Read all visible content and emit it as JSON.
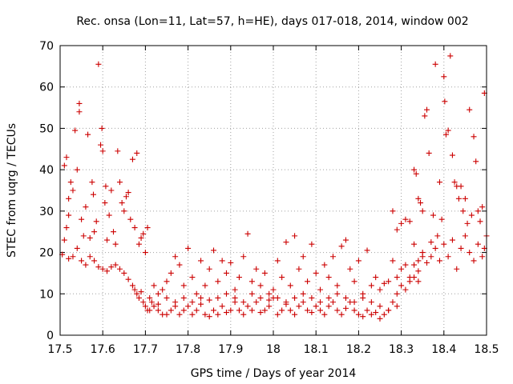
{
  "chart_data": {
    "type": "scatter",
    "title": "Rec. onsa (Lon=11, Lat=57, h=HE), days 017-018, 2014, window 002",
    "xlabel": "GPS time / Days of year 2014",
    "ylabel": "STEC from uqrg / TECUs",
    "xlim": [
      17.5,
      18.5
    ],
    "ylim": [
      0,
      70
    ],
    "x_ticks": [
      17.5,
      17.6,
      17.7,
      17.8,
      17.9,
      18.0,
      18.1,
      18.2,
      18.3,
      18.4,
      18.5
    ],
    "x_tick_labels": [
      "17.5",
      "17.6",
      "17.7",
      "17.8",
      "17.9",
      "18",
      "18.1",
      "18.2",
      "18.3",
      "18.4",
      "18.5"
    ],
    "y_ticks": [
      0,
      10,
      20,
      30,
      40,
      50,
      60,
      70
    ],
    "y_tick_labels": [
      "0",
      "10",
      "20",
      "30",
      "40",
      "50",
      "60",
      "70"
    ],
    "grid": true,
    "marker": "plus",
    "marker_color": "#cc0000",
    "series": [
      {
        "name": "STEC",
        "points": [
          [
            17.505,
            19.5
          ],
          [
            17.51,
            23
          ],
          [
            17.515,
            26
          ],
          [
            17.52,
            29
          ],
          [
            17.51,
            41
          ],
          [
            17.515,
            43
          ],
          [
            17.52,
            33
          ],
          [
            17.525,
            37
          ],
          [
            17.53,
            35
          ],
          [
            17.535,
            49.5
          ],
          [
            17.54,
            40
          ],
          [
            17.545,
            56
          ],
          [
            17.545,
            54
          ],
          [
            17.55,
            28
          ],
          [
            17.555,
            24
          ],
          [
            17.56,
            31
          ],
          [
            17.565,
            48.5
          ],
          [
            17.57,
            23.5
          ],
          [
            17.575,
            37
          ],
          [
            17.578,
            34
          ],
          [
            17.58,
            25
          ],
          [
            17.585,
            27.5
          ],
          [
            17.59,
            65.5
          ],
          [
            17.595,
            46
          ],
          [
            17.598,
            50
          ],
          [
            17.6,
            44.5
          ],
          [
            17.605,
            32
          ],
          [
            17.607,
            36
          ],
          [
            17.61,
            23
          ],
          [
            17.615,
            29
          ],
          [
            17.62,
            35
          ],
          [
            17.625,
            25
          ],
          [
            17.63,
            22
          ],
          [
            17.635,
            44.5
          ],
          [
            17.64,
            37
          ],
          [
            17.645,
            32
          ],
          [
            17.65,
            30
          ],
          [
            17.655,
            33.5
          ],
          [
            17.66,
            34.5
          ],
          [
            17.665,
            28
          ],
          [
            17.67,
            42.5
          ],
          [
            17.675,
            26
          ],
          [
            17.68,
            44
          ],
          [
            17.685,
            22
          ],
          [
            17.69,
            23.5
          ],
          [
            17.695,
            24.5
          ],
          [
            17.7,
            20
          ],
          [
            17.705,
            26
          ],
          [
            17.52,
            18.5
          ],
          [
            17.53,
            19
          ],
          [
            17.54,
            21
          ],
          [
            17.55,
            18
          ],
          [
            17.56,
            17
          ],
          [
            17.57,
            19
          ],
          [
            17.58,
            18
          ],
          [
            17.59,
            16.5
          ],
          [
            17.6,
            16
          ],
          [
            17.61,
            15.5
          ],
          [
            17.62,
            16.5
          ],
          [
            17.63,
            17
          ],
          [
            17.64,
            16
          ],
          [
            17.65,
            15
          ],
          [
            17.66,
            13.5
          ],
          [
            17.67,
            12
          ],
          [
            17.675,
            11
          ],
          [
            17.68,
            10
          ],
          [
            17.685,
            9
          ],
          [
            17.69,
            10.5
          ],
          [
            17.695,
            8
          ],
          [
            17.7,
            7
          ],
          [
            17.705,
            6
          ],
          [
            17.71,
            9
          ],
          [
            17.715,
            8
          ],
          [
            17.72,
            7
          ],
          [
            17.73,
            6
          ],
          [
            17.74,
            5
          ],
          [
            17.75,
            5
          ],
          [
            17.76,
            6
          ],
          [
            17.77,
            7
          ],
          [
            17.78,
            5
          ],
          [
            17.79,
            6
          ],
          [
            17.8,
            7
          ],
          [
            17.81,
            5
          ],
          [
            17.82,
            6
          ],
          [
            17.83,
            7.5
          ],
          [
            17.84,
            5
          ],
          [
            17.85,
            4.5
          ],
          [
            17.86,
            6
          ],
          [
            17.87,
            5
          ],
          [
            17.88,
            7
          ],
          [
            17.89,
            5.5
          ],
          [
            17.9,
            6
          ],
          [
            17.91,
            8
          ],
          [
            17.92,
            6
          ],
          [
            17.93,
            5
          ],
          [
            17.94,
            7
          ],
          [
            17.95,
            6
          ],
          [
            17.96,
            8
          ],
          [
            17.97,
            5.5
          ],
          [
            17.98,
            6
          ],
          [
            17.99,
            7
          ],
          [
            18.0,
            9
          ],
          [
            18.01,
            5
          ],
          [
            18.02,
            6
          ],
          [
            18.03,
            7.5
          ],
          [
            18.04,
            6
          ],
          [
            18.05,
            5
          ],
          [
            18.06,
            7
          ],
          [
            18.07,
            8
          ],
          [
            18.08,
            6
          ],
          [
            18.09,
            5.5
          ],
          [
            18.1,
            7
          ],
          [
            18.11,
            6
          ],
          [
            18.12,
            5
          ],
          [
            18.13,
            7
          ],
          [
            18.14,
            8
          ],
          [
            18.15,
            6
          ],
          [
            18.16,
            5
          ],
          [
            18.17,
            6.5
          ],
          [
            18.18,
            8
          ],
          [
            18.19,
            6
          ],
          [
            18.2,
            5
          ],
          [
            18.21,
            4.5
          ],
          [
            18.22,
            6
          ],
          [
            18.23,
            5
          ],
          [
            18.24,
            5.5
          ],
          [
            18.25,
            4
          ],
          [
            18.26,
            5
          ],
          [
            18.27,
            6
          ],
          [
            18.28,
            8
          ],
          [
            18.29,
            10
          ],
          [
            18.3,
            12
          ],
          [
            18.31,
            11
          ],
          [
            18.32,
            13
          ],
          [
            18.33,
            14
          ],
          [
            18.34,
            15.5
          ],
          [
            17.72,
            12
          ],
          [
            17.73,
            10
          ],
          [
            17.74,
            11
          ],
          [
            17.75,
            13
          ],
          [
            17.76,
            15
          ],
          [
            17.77,
            19
          ],
          [
            17.78,
            17
          ],
          [
            17.79,
            12
          ],
          [
            17.8,
            21
          ],
          [
            17.81,
            14
          ],
          [
            17.82,
            10
          ],
          [
            17.83,
            18
          ],
          [
            17.84,
            12
          ],
          [
            17.85,
            16
          ],
          [
            17.86,
            20.5
          ],
          [
            17.87,
            13
          ],
          [
            17.88,
            18
          ],
          [
            17.89,
            15
          ],
          [
            17.9,
            17.5
          ],
          [
            17.91,
            11
          ],
          [
            17.92,
            14
          ],
          [
            17.93,
            19
          ],
          [
            17.94,
            24.5
          ],
          [
            17.95,
            13
          ],
          [
            17.96,
            16
          ],
          [
            17.97,
            12
          ],
          [
            17.98,
            15
          ],
          [
            17.99,
            10
          ],
          [
            18.0,
            11
          ],
          [
            18.01,
            18
          ],
          [
            18.02,
            14
          ],
          [
            18.03,
            22.5
          ],
          [
            18.04,
            12
          ],
          [
            18.05,
            24
          ],
          [
            18.06,
            16
          ],
          [
            18.07,
            19
          ],
          [
            18.08,
            13
          ],
          [
            18.09,
            22
          ],
          [
            18.1,
            15
          ],
          [
            18.11,
            11
          ],
          [
            18.12,
            17
          ],
          [
            18.13,
            14
          ],
          [
            18.14,
            19
          ],
          [
            18.15,
            12
          ],
          [
            18.16,
            21.5
          ],
          [
            18.17,
            23
          ],
          [
            18.18,
            16
          ],
          [
            18.19,
            13
          ],
          [
            18.2,
            18
          ],
          [
            18.21,
            10
          ],
          [
            18.22,
            20.5
          ],
          [
            18.23,
            12
          ],
          [
            18.24,
            14
          ],
          [
            18.25,
            11
          ],
          [
            18.26,
            12.5
          ],
          [
            18.27,
            13
          ],
          [
            18.28,
            18
          ],
          [
            18.29,
            14
          ],
          [
            18.3,
            16
          ],
          [
            18.31,
            17
          ],
          [
            18.32,
            14
          ],
          [
            18.33,
            22
          ],
          [
            18.34,
            13
          ],
          [
            18.35,
            19
          ],
          [
            17.71,
            6
          ],
          [
            17.73,
            7.5
          ],
          [
            17.75,
            9
          ],
          [
            17.77,
            8
          ],
          [
            17.79,
            9
          ],
          [
            17.81,
            8
          ],
          [
            17.83,
            9
          ],
          [
            17.85,
            8.5
          ],
          [
            17.87,
            9
          ],
          [
            17.89,
            10
          ],
          [
            17.91,
            9
          ],
          [
            17.93,
            8
          ],
          [
            17.95,
            10
          ],
          [
            17.97,
            9
          ],
          [
            17.99,
            8.5
          ],
          [
            18.01,
            9
          ],
          [
            18.03,
            8
          ],
          [
            18.05,
            9
          ],
          [
            18.07,
            10
          ],
          [
            18.09,
            9
          ],
          [
            18.11,
            8
          ],
          [
            18.13,
            9
          ],
          [
            18.15,
            10
          ],
          [
            18.17,
            9
          ],
          [
            18.19,
            8
          ],
          [
            18.21,
            9
          ],
          [
            18.23,
            8
          ],
          [
            18.25,
            7
          ],
          [
            18.27,
            6
          ],
          [
            18.29,
            7
          ],
          [
            18.28,
            30
          ],
          [
            18.29,
            25.5
          ],
          [
            18.3,
            27
          ],
          [
            18.31,
            28
          ],
          [
            18.32,
            27.5
          ],
          [
            18.33,
            40
          ],
          [
            18.335,
            39
          ],
          [
            18.34,
            33
          ],
          [
            18.345,
            32
          ],
          [
            18.35,
            30
          ],
          [
            18.355,
            53
          ],
          [
            18.36,
            54.5
          ],
          [
            18.365,
            44
          ],
          [
            18.37,
            22.5
          ],
          [
            18.375,
            29
          ],
          [
            18.38,
            65.5
          ],
          [
            18.385,
            24
          ],
          [
            18.39,
            37
          ],
          [
            18.395,
            28
          ],
          [
            18.4,
            62.5
          ],
          [
            18.402,
            56.5
          ],
          [
            18.405,
            48.5
          ],
          [
            18.41,
            49.5
          ],
          [
            18.415,
            67.5
          ],
          [
            18.42,
            43.5
          ],
          [
            18.425,
            37
          ],
          [
            18.43,
            36
          ],
          [
            18.435,
            33
          ],
          [
            18.44,
            36
          ],
          [
            18.445,
            30
          ],
          [
            18.45,
            33
          ],
          [
            18.455,
            27
          ],
          [
            18.46,
            54.5
          ],
          [
            18.465,
            29
          ],
          [
            18.47,
            48
          ],
          [
            18.475,
            42
          ],
          [
            18.48,
            30
          ],
          [
            18.485,
            27.5
          ],
          [
            18.49,
            31
          ],
          [
            18.495,
            58.5
          ],
          [
            18.33,
            17
          ],
          [
            18.34,
            18
          ],
          [
            18.35,
            20
          ],
          [
            18.36,
            17.5
          ],
          [
            18.37,
            19
          ],
          [
            18.38,
            21
          ],
          [
            18.39,
            18
          ],
          [
            18.4,
            22
          ],
          [
            18.41,
            19
          ],
          [
            18.42,
            23
          ],
          [
            18.43,
            16
          ],
          [
            18.44,
            21
          ],
          [
            18.45,
            24
          ],
          [
            18.46,
            20
          ],
          [
            18.47,
            18
          ],
          [
            18.48,
            22
          ],
          [
            18.49,
            19
          ],
          [
            18.495,
            21
          ],
          [
            18.5,
            24
          ]
        ]
      }
    ]
  }
}
